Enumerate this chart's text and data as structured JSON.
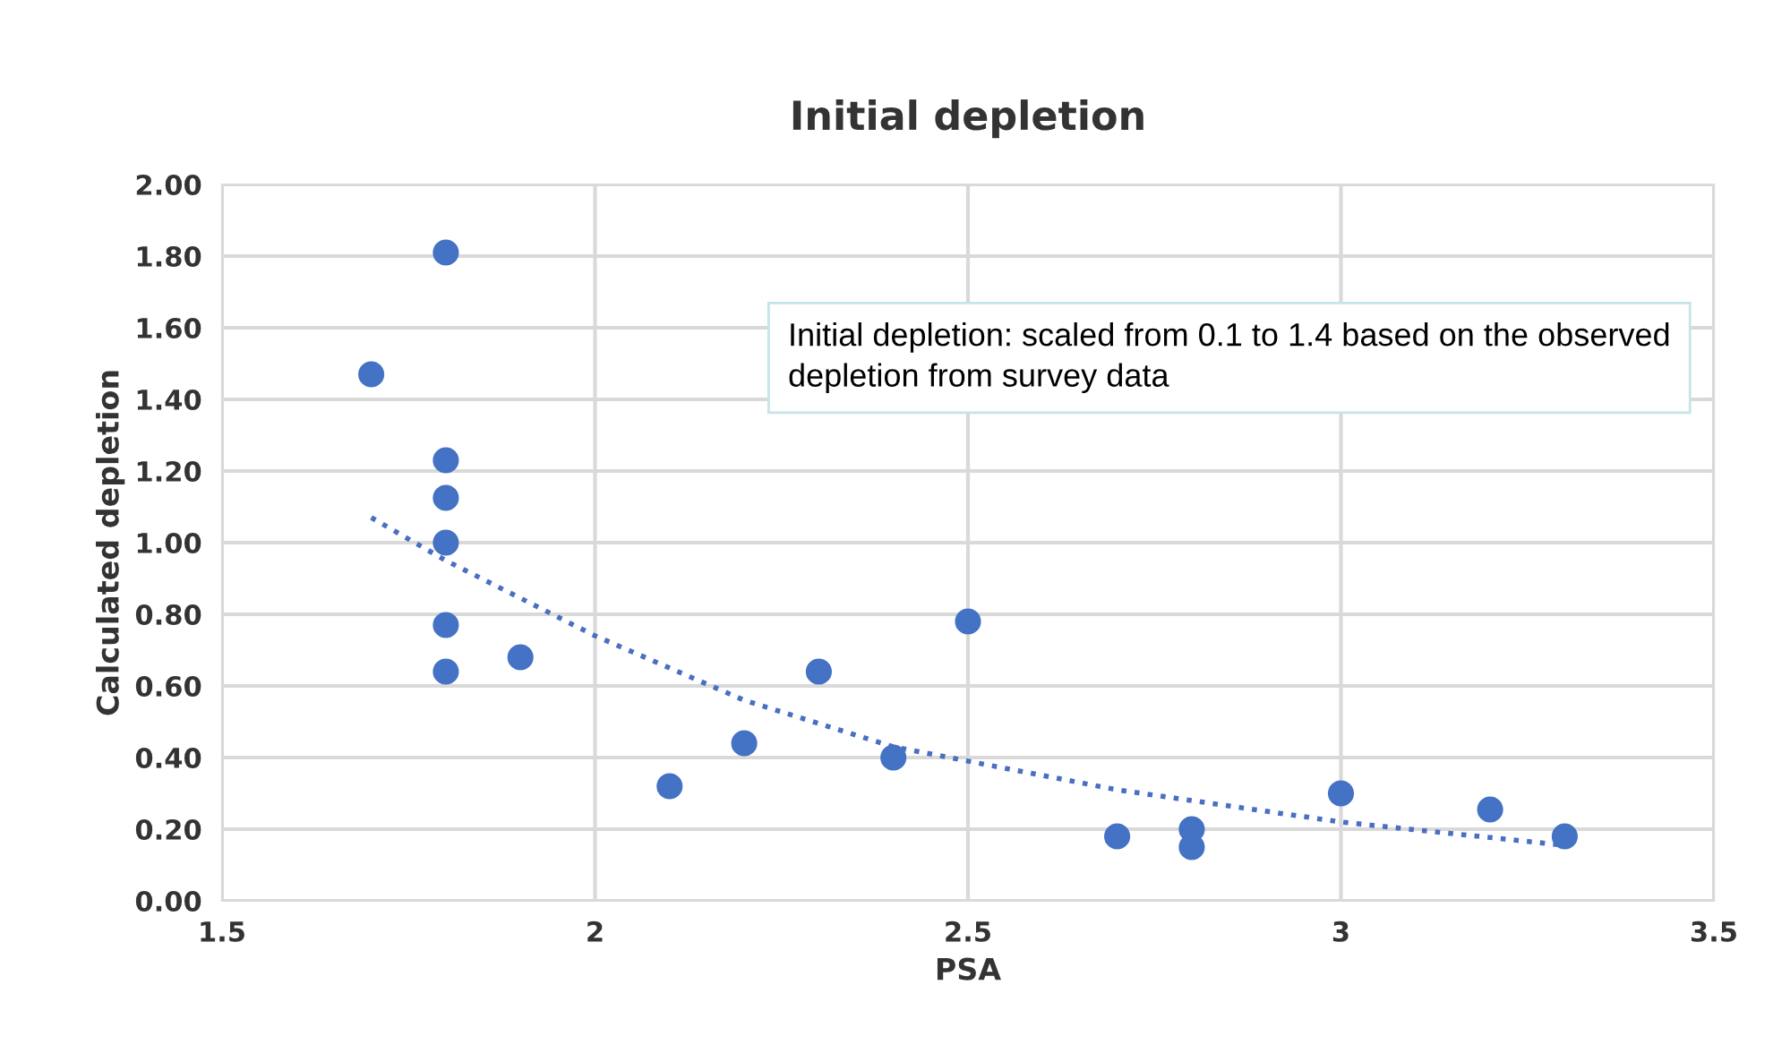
{
  "chart_data": {
    "type": "scatter",
    "title": "Initial depletion",
    "xlabel": "PSA",
    "ylabel": "Calculated depletion",
    "annotations": [
      "Initial depletion: scaled from 0.1 to 1.4 based on the observed depletion from survey data"
    ],
    "xlim": [
      1.5,
      3.5
    ],
    "xticks": [
      1.5,
      2,
      2.5,
      3,
      3.5
    ],
    "ylim": [
      0,
      2
    ],
    "yticks": [
      {
        "value": 0,
        "label": "0.00"
      },
      {
        "value": 0.2,
        "label": "0.20"
      },
      {
        "value": 0.4,
        "label": "0.40"
      },
      {
        "value": 0.6,
        "label": "0.60"
      },
      {
        "value": 0.8,
        "label": "0.80"
      },
      {
        "value": 1.0,
        "label": "1.00"
      },
      {
        "value": 1.2,
        "label": "1.20"
      },
      {
        "value": 1.4,
        "label": "1.40"
      },
      {
        "value": 1.6,
        "label": "1.60"
      },
      {
        "value": 1.8,
        "label": "1.80"
      },
      {
        "value": 2.0,
        "label": "2.00"
      }
    ],
    "grid": true,
    "legend": false,
    "series": [
      {
        "color": "#4472c4",
        "marker": "circle",
        "x": [
          1.7,
          1.8,
          1.8,
          1.8,
          1.8,
          1.8,
          1.8,
          1.9,
          2.1,
          2.2,
          2.3,
          2.4,
          2.5,
          2.7,
          2.8,
          2.8,
          3.0,
          3.2,
          3.3
        ],
        "values": [
          1.47,
          1.81,
          1.23,
          1.125,
          1.0,
          0.77,
          0.64,
          0.68,
          0.32,
          0.44,
          0.64,
          0.4,
          0.78,
          0.18,
          0.2,
          0.15,
          0.3,
          0.255,
          0.18
        ]
      },
      {
        "type": "line",
        "color": "#4a6fc0",
        "marker": "none",
        "line_style": "dotted",
        "x": [
          1.7,
          1.8,
          2.0,
          2.2,
          2.4,
          2.5,
          2.7,
          3.0,
          3.3
        ],
        "values": [
          1.07,
          0.95,
          0.74,
          0.56,
          0.43,
          0.39,
          0.31,
          0.22,
          0.155
        ]
      }
    ]
  }
}
